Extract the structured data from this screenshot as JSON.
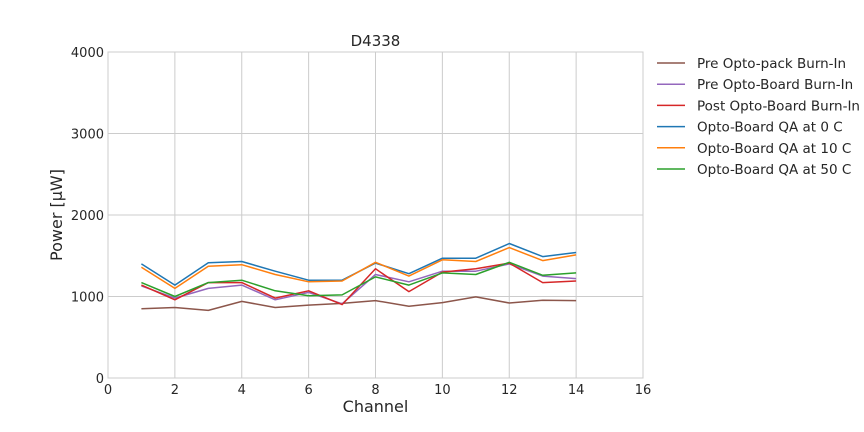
{
  "chart_data": {
    "type": "line",
    "title": "D4338",
    "xlabel": "Channel",
    "ylabel": "Power [μW]",
    "xlim": [
      0,
      16
    ],
    "ylim": [
      0,
      4000
    ],
    "xticks": [
      0,
      2,
      4,
      6,
      8,
      10,
      12,
      14,
      16
    ],
    "yticks": [
      0,
      1000,
      2000,
      3000,
      4000
    ],
    "grid": true,
    "legend_position": "outside-right",
    "x": [
      1,
      2,
      3,
      4,
      5,
      6,
      7,
      8,
      9,
      10,
      11,
      12,
      13,
      14
    ],
    "series": [
      {
        "name": "Pre Opto-pack Burn-In",
        "color": "#8c564b",
        "values": [
          850,
          865,
          830,
          940,
          865,
          895,
          915,
          950,
          880,
          925,
          995,
          920,
          955,
          950
        ]
      },
      {
        "name": "Pre Opto-Board Burn-In",
        "color": "#9467bd",
        "values": [
          1130,
          980,
          1100,
          1140,
          960,
          1050,
          910,
          1270,
          1180,
          1310,
          1310,
          1400,
          1250,
          1220
        ]
      },
      {
        "name": "Post Opto-Board Burn-In",
        "color": "#d62728",
        "values": [
          1140,
          960,
          1170,
          1170,
          980,
          1070,
          900,
          1340,
          1060,
          1300,
          1340,
          1410,
          1170,
          1190
        ]
      },
      {
        "name": "Opto-Board QA at 0 C",
        "color": "#1f77b4",
        "values": [
          1400,
          1140,
          1415,
          1430,
          1310,
          1200,
          1200,
          1410,
          1280,
          1470,
          1470,
          1650,
          1490,
          1540
        ]
      },
      {
        "name": "Opto-Board QA at 10 C",
        "color": "#ff7f0e",
        "values": [
          1360,
          1100,
          1370,
          1390,
          1270,
          1180,
          1190,
          1420,
          1250,
          1450,
          1430,
          1600,
          1440,
          1510
        ]
      },
      {
        "name": "Opto-Board QA at 50 C",
        "color": "#2ca02c",
        "values": [
          1170,
          1000,
          1170,
          1200,
          1070,
          1010,
          1020,
          1240,
          1140,
          1290,
          1270,
          1420,
          1260,
          1290
        ]
      }
    ]
  }
}
